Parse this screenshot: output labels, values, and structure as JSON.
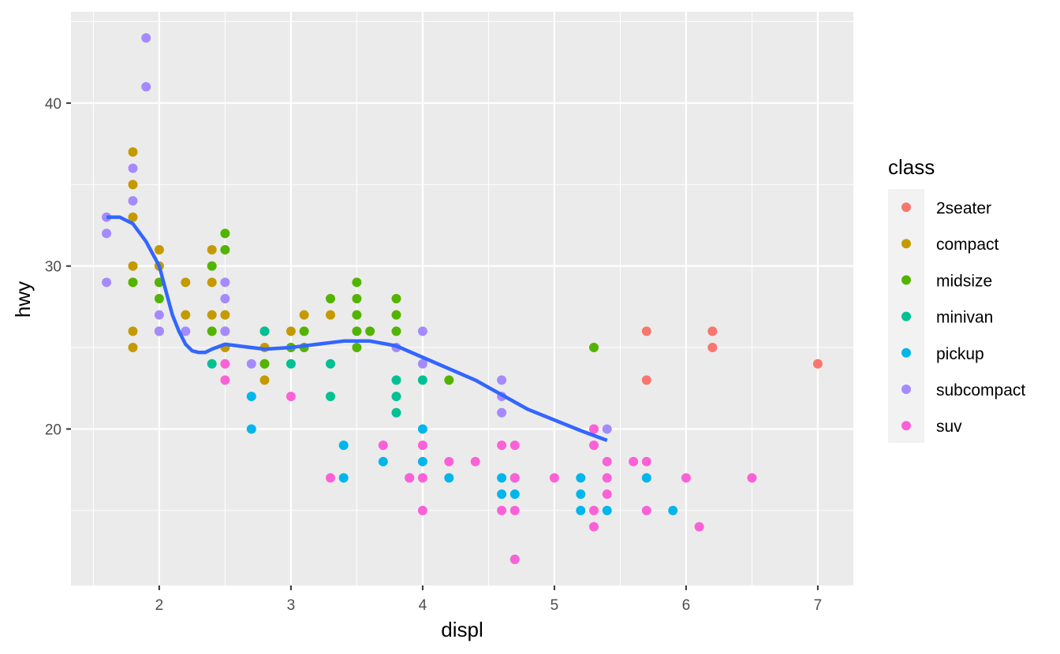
{
  "chart_data": {
    "type": "scatter",
    "xlabel": "displ",
    "ylabel": "hwy",
    "xlim": [
      1.33,
      7.27
    ],
    "ylim": [
      10.4,
      45.6
    ],
    "x_ticks": [
      2,
      3,
      4,
      5,
      6,
      7
    ],
    "y_ticks": [
      20,
      30,
      40
    ],
    "grid": true,
    "legend": {
      "title": "class",
      "placement": "right",
      "entries": [
        {
          "name": "2seater",
          "color": "#F8766D"
        },
        {
          "name": "compact",
          "color": "#C49A00"
        },
        {
          "name": "midsize",
          "color": "#53B400"
        },
        {
          "name": "minivan",
          "color": "#00C094"
        },
        {
          "name": "pickup",
          "color": "#00B6EB"
        },
        {
          "name": "subcompact",
          "color": "#A58AFF"
        },
        {
          "name": "suv",
          "color": "#FB61D7"
        }
      ]
    },
    "colors": {
      "panel_background": "#EBEBEB",
      "grid_major": "#FFFFFF",
      "smooth_line": "#3366FF"
    },
    "series": [
      {
        "name": "2seater",
        "points": [
          [
            5.7,
            26
          ],
          [
            5.7,
            23
          ],
          [
            6.2,
            26
          ],
          [
            6.2,
            25
          ],
          [
            7.0,
            24
          ]
        ]
      },
      {
        "name": "compact",
        "points": [
          [
            1.8,
            37
          ],
          [
            1.8,
            35
          ],
          [
            1.8,
            33
          ],
          [
            1.8,
            30
          ],
          [
            1.8,
            29
          ],
          [
            1.8,
            26
          ],
          [
            1.8,
            25
          ],
          [
            2.0,
            31
          ],
          [
            2.0,
            30
          ],
          [
            2.0,
            29
          ],
          [
            2.2,
            29
          ],
          [
            2.2,
            27
          ],
          [
            2.4,
            31
          ],
          [
            2.4,
            29
          ],
          [
            2.4,
            27
          ],
          [
            2.5,
            27
          ],
          [
            2.5,
            25
          ],
          [
            2.8,
            25
          ],
          [
            2.8,
            24
          ],
          [
            2.8,
            23
          ],
          [
            3.0,
            26
          ],
          [
            3.1,
            27
          ],
          [
            3.3,
            27
          ]
        ]
      },
      {
        "name": "midsize",
        "points": [
          [
            1.8,
            29
          ],
          [
            2.0,
            29
          ],
          [
            2.0,
            28
          ],
          [
            2.0,
            26
          ],
          [
            2.4,
            30
          ],
          [
            2.4,
            26
          ],
          [
            2.5,
            32
          ],
          [
            2.5,
            31
          ],
          [
            2.5,
            26
          ],
          [
            2.8,
            26
          ],
          [
            2.8,
            24
          ],
          [
            3.0,
            25
          ],
          [
            3.1,
            26
          ],
          [
            3.1,
            25
          ],
          [
            3.3,
            28
          ],
          [
            3.5,
            29
          ],
          [
            3.5,
            28
          ],
          [
            3.5,
            27
          ],
          [
            3.5,
            26
          ],
          [
            3.5,
            25
          ],
          [
            3.6,
            26
          ],
          [
            3.8,
            28
          ],
          [
            3.8,
            27
          ],
          [
            3.8,
            26
          ],
          [
            4.2,
            23
          ],
          [
            5.3,
            25
          ]
        ]
      },
      {
        "name": "minivan",
        "points": [
          [
            2.4,
            24
          ],
          [
            2.8,
            26
          ],
          [
            3.0,
            24
          ],
          [
            3.3,
            24
          ],
          [
            3.3,
            22
          ],
          [
            3.8,
            23
          ],
          [
            3.8,
            22
          ],
          [
            3.8,
            21
          ],
          [
            4.0,
            23
          ]
        ]
      },
      {
        "name": "pickup",
        "points": [
          [
            2.7,
            22
          ],
          [
            2.7,
            20
          ],
          [
            3.4,
            19
          ],
          [
            3.4,
            17
          ],
          [
            3.7,
            18
          ],
          [
            3.9,
            17
          ],
          [
            4.0,
            20
          ],
          [
            4.0,
            18
          ],
          [
            4.2,
            17
          ],
          [
            4.6,
            17
          ],
          [
            4.6,
            16
          ],
          [
            4.7,
            17
          ],
          [
            4.7,
            16
          ],
          [
            4.7,
            12
          ],
          [
            5.2,
            17
          ],
          [
            5.2,
            16
          ],
          [
            5.2,
            15
          ],
          [
            5.4,
            15
          ],
          [
            5.7,
            17
          ],
          [
            5.9,
            15
          ]
        ]
      },
      {
        "name": "subcompact",
        "points": [
          [
            1.6,
            33
          ],
          [
            1.6,
            32
          ],
          [
            1.6,
            29
          ],
          [
            1.8,
            36
          ],
          [
            1.8,
            34
          ],
          [
            1.9,
            44
          ],
          [
            1.9,
            41
          ],
          [
            2.0,
            27
          ],
          [
            2.0,
            26
          ],
          [
            2.2,
            26
          ],
          [
            2.5,
            29
          ],
          [
            2.5,
            28
          ],
          [
            2.5,
            26
          ],
          [
            2.7,
            24
          ],
          [
            3.8,
            25
          ],
          [
            4.0,
            26
          ],
          [
            4.0,
            24
          ],
          [
            4.6,
            23
          ],
          [
            4.6,
            22
          ],
          [
            4.6,
            21
          ],
          [
            5.3,
            20
          ],
          [
            5.4,
            20
          ]
        ]
      },
      {
        "name": "suv",
        "points": [
          [
            2.5,
            24
          ],
          [
            2.5,
            23
          ],
          [
            3.0,
            22
          ],
          [
            3.3,
            17
          ],
          [
            3.7,
            19
          ],
          [
            3.9,
            17
          ],
          [
            4.0,
            19
          ],
          [
            4.0,
            17
          ],
          [
            4.0,
            15
          ],
          [
            4.2,
            18
          ],
          [
            4.4,
            18
          ],
          [
            4.6,
            19
          ],
          [
            4.6,
            15
          ],
          [
            4.7,
            19
          ],
          [
            4.7,
            17
          ],
          [
            4.7,
            15
          ],
          [
            4.7,
            12
          ],
          [
            5.0,
            17
          ],
          [
            5.3,
            20
          ],
          [
            5.3,
            19
          ],
          [
            5.3,
            15
          ],
          [
            5.3,
            14
          ],
          [
            5.4,
            18
          ],
          [
            5.4,
            17
          ],
          [
            5.4,
            16
          ],
          [
            5.6,
            18
          ],
          [
            5.7,
            18
          ],
          [
            5.7,
            15
          ],
          [
            6.0,
            17
          ],
          [
            6.1,
            14
          ],
          [
            6.5,
            17
          ]
        ]
      }
    ],
    "smooth": {
      "x": [
        1.6,
        1.7,
        1.8,
        1.9,
        2.0,
        2.05,
        2.1,
        2.15,
        2.2,
        2.25,
        2.3,
        2.35,
        2.4,
        2.5,
        2.6,
        2.8,
        3.0,
        3.2,
        3.4,
        3.6,
        3.8,
        4.0,
        4.4,
        4.8,
        5.2,
        5.4
      ],
      "y": [
        33.0,
        33.0,
        32.6,
        31.5,
        30.0,
        28.5,
        27.0,
        26.0,
        25.2,
        24.8,
        24.7,
        24.7,
        24.9,
        25.2,
        25.1,
        24.9,
        25.0,
        25.2,
        25.4,
        25.4,
        25.1,
        24.4,
        23.0,
        21.2,
        19.9,
        19.3
      ]
    }
  }
}
